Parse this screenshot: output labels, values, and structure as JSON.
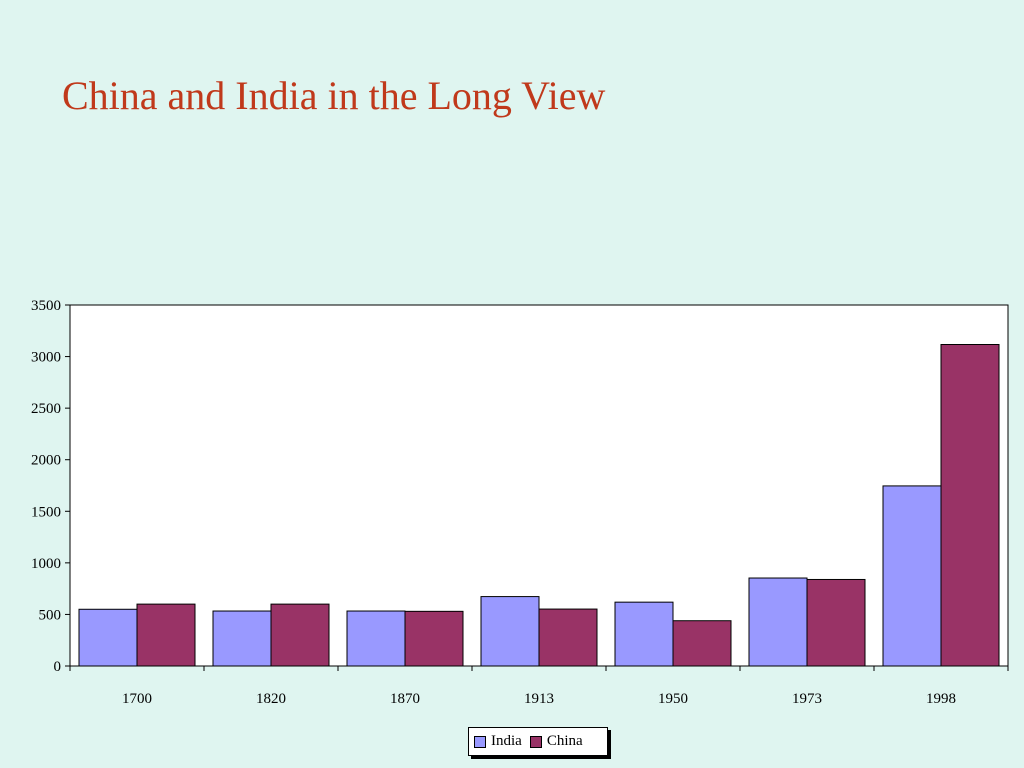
{
  "slide": {
    "title": "China and India in the Long View"
  },
  "chart_data": {
    "type": "bar",
    "categories": [
      "1700",
      "1820",
      "1870",
      "1913",
      "1950",
      "1973",
      "1998"
    ],
    "series": [
      {
        "name": "India",
        "color": "#9999ff",
        "values": [
          550,
          533,
          533,
          673,
          619,
          853,
          1746
        ]
      },
      {
        "name": "China",
        "color": "#993366",
        "values": [
          600,
          600,
          530,
          552,
          439,
          839,
          3117
        ]
      }
    ],
    "ylim": [
      0,
      3500
    ],
    "yticks": [
      0,
      500,
      1000,
      1500,
      2000,
      2500,
      3000,
      3500
    ],
    "grid": false,
    "legend_position": "bottom-center",
    "plot_background": "#ffffff"
  }
}
